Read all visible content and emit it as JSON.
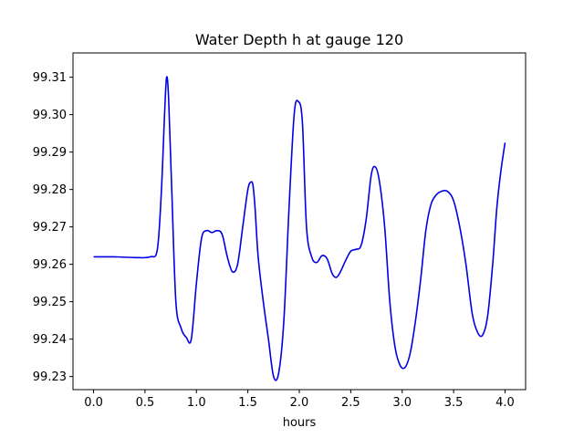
{
  "chart_data": {
    "type": "line",
    "title": "Water Depth h at gauge 120",
    "xlabel": "hours",
    "ylabel": "",
    "xlim": [
      -0.2,
      4.2
    ],
    "ylim": [
      99.2265,
      99.3165
    ],
    "grid": false,
    "legend": "none",
    "x_ticks": [
      0.0,
      0.5,
      1.0,
      1.5,
      2.0,
      2.5,
      3.0,
      3.5,
      4.0
    ],
    "x_tick_labels": [
      "0.0",
      "0.5",
      "1.0",
      "1.5",
      "2.0",
      "2.5",
      "3.0",
      "3.5",
      "4.0"
    ],
    "y_ticks": [
      99.23,
      99.24,
      99.25,
      99.26,
      99.27,
      99.28,
      99.29,
      99.3,
      99.31
    ],
    "y_tick_labels": [
      "99.23",
      "99.24",
      "99.25",
      "99.26",
      "99.27",
      "99.28",
      "99.29",
      "99.30",
      "99.31"
    ],
    "series": [
      {
        "color": "#0000e6",
        "x": [
          0.0,
          0.2,
          0.4,
          0.55,
          0.62,
          0.66,
          0.69,
          0.71,
          0.73,
          0.76,
          0.8,
          0.85,
          0.9,
          0.95,
          1.0,
          1.05,
          1.1,
          1.15,
          1.2,
          1.25,
          1.3,
          1.35,
          1.4,
          1.45,
          1.5,
          1.53,
          1.55,
          1.57,
          1.6,
          1.65,
          1.7,
          1.75,
          1.8,
          1.85,
          1.9,
          1.95,
          1.99,
          2.03,
          2.07,
          2.12,
          2.17,
          2.22,
          2.27,
          2.32,
          2.36,
          2.4,
          2.45,
          2.5,
          2.55,
          2.6,
          2.65,
          2.7,
          2.74,
          2.78,
          2.83,
          2.88,
          2.93,
          2.98,
          3.03,
          3.08,
          3.13,
          3.18,
          3.23,
          3.28,
          3.33,
          3.38,
          3.44,
          3.5,
          3.56,
          3.62,
          3.68,
          3.73,
          3.78,
          3.83,
          3.88,
          3.92,
          3.96,
          4.0
        ],
        "values": [
          99.262,
          99.262,
          99.2618,
          99.262,
          99.264,
          99.28,
          99.3,
          99.31,
          99.304,
          99.28,
          99.25,
          99.243,
          99.2405,
          99.24,
          99.255,
          99.267,
          99.269,
          99.2685,
          99.269,
          99.268,
          99.262,
          99.258,
          99.26,
          99.27,
          99.28,
          99.282,
          99.281,
          99.275,
          99.262,
          99.25,
          99.24,
          99.23,
          99.231,
          99.245,
          99.275,
          99.3,
          99.3035,
          99.298,
          99.27,
          99.262,
          99.2605,
          99.2623,
          99.2615,
          99.2575,
          99.2565,
          99.258,
          99.261,
          99.2635,
          99.264,
          99.265,
          99.272,
          99.284,
          99.286,
          99.282,
          99.27,
          99.25,
          99.238,
          99.233,
          99.2325,
          99.2365,
          99.245,
          99.256,
          99.269,
          99.276,
          99.2785,
          99.2795,
          99.2795,
          99.277,
          99.27,
          99.26,
          99.247,
          99.242,
          99.241,
          99.246,
          99.26,
          99.275,
          99.285,
          99.2925
        ]
      }
    ]
  }
}
